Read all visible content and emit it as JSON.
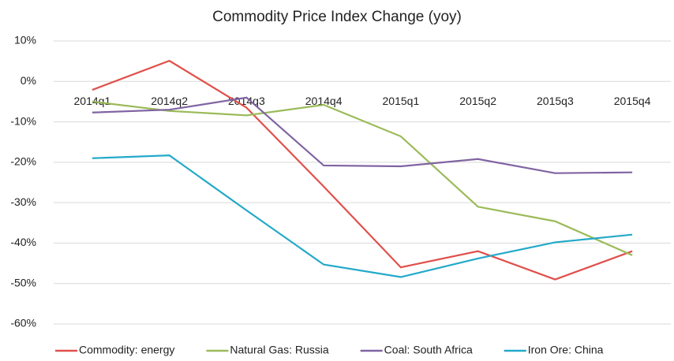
{
  "chart_data": {
    "type": "line",
    "title": "Commodity Price Index Change (yoy)",
    "categories": [
      "2014q1",
      "2014q2",
      "2014q3",
      "2014q4",
      "2015q1",
      "2015q2",
      "2015q3",
      "2015q4"
    ],
    "series": [
      {
        "name": "Commodity: energy",
        "color": "#e0504b",
        "values": [
          -2.1,
          5.1,
          -6.5,
          -26,
          -46,
          -42,
          -49,
          -42
        ]
      },
      {
        "name": "Natural Gas: Russia",
        "color": "#9bbb59",
        "values": [
          -5,
          -7.3,
          -8.4,
          -5.8,
          -13.6,
          -31,
          -34.6,
          -43
        ]
      },
      {
        "name": "Coal: South Africa",
        "color": "#8064a2",
        "values": [
          -7.7,
          -7,
          -4,
          -20.8,
          -21,
          -19.2,
          -22.7,
          -22.5
        ]
      },
      {
        "name": "Iron Ore: China",
        "color": "#23a9c9",
        "values": [
          -19,
          -18.3,
          -31.9,
          -45.3,
          -48.4,
          -43.8,
          -39.8,
          -37.9
        ]
      }
    ],
    "ylim": [
      -60,
      10
    ],
    "yticks": [
      {
        "value": -60,
        "label": "-60%"
      },
      {
        "value": -50,
        "label": "-50%"
      },
      {
        "value": -40,
        "label": "-40%"
      },
      {
        "value": -30,
        "label": "-30%"
      },
      {
        "value": -20,
        "label": "-20%"
      },
      {
        "value": -10,
        "label": "-10%"
      },
      {
        "value": 0,
        "label": "0%"
      },
      {
        "value": 10,
        "label": "10%"
      }
    ],
    "grid": true,
    "legend": "bottom"
  }
}
